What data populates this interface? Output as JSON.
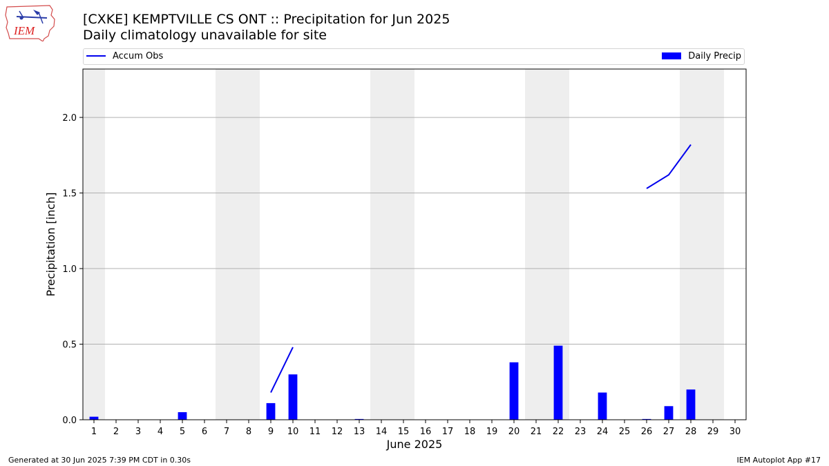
{
  "logo": {
    "text": "IEM",
    "icon": "iem-iowa-logo-icon"
  },
  "header": {
    "title": "[CXKE] KEMPTVILLE CS  ONT :: Precipitation for Jun 2025",
    "subtitle": "Daily climatology unavailable for site"
  },
  "legend": {
    "accum_label": "Accum Obs",
    "daily_label": "Daily Precip",
    "placement": "top"
  },
  "footer": {
    "generated": "Generated at 30 Jun 2025 7:39 PM CDT in 0.30s",
    "app": "IEM Autoplot App #17"
  },
  "colors": {
    "bar": "#0000ff",
    "accum_line": "#0000ee",
    "weekend_shade": "#eeeeee",
    "grid": "#b0b0b0"
  },
  "chart_data": {
    "type": "bar",
    "title": "[CXKE] KEMPTVILLE CS  ONT :: Precipitation for Jun 2025",
    "subtitle": "Daily climatology unavailable for site",
    "xlabel": "June 2025",
    "ylabel": "Precipitation [inch]",
    "ylim": [
      0,
      2.32
    ],
    "xlim": [
      0.5,
      30.5
    ],
    "yticks": [
      "0.0",
      "0.5",
      "1.0",
      "1.5",
      "2.0"
    ],
    "ytick_values": [
      0,
      0.5,
      1.0,
      1.5,
      2.0
    ],
    "xticks": [
      "1",
      "2",
      "3",
      "4",
      "5",
      "6",
      "7",
      "8",
      "9",
      "10",
      "11",
      "12",
      "13",
      "14",
      "15",
      "16",
      "17",
      "18",
      "19",
      "20",
      "21",
      "22",
      "23",
      "24",
      "25",
      "26",
      "27",
      "28",
      "29",
      "30"
    ],
    "grid": "y",
    "weekend_shading": [
      [
        1,
        1
      ],
      [
        7,
        8
      ],
      [
        14,
        15
      ],
      [
        21,
        22
      ],
      [
        28,
        29
      ]
    ],
    "series": [
      {
        "name": "Daily Precip",
        "type": "bar",
        "points": [
          {
            "day": 1,
            "value": 0.02
          },
          {
            "day": 5,
            "value": 0.05
          },
          {
            "day": 9,
            "value": 0.11
          },
          {
            "day": 10,
            "value": 0.3
          },
          {
            "day": 13,
            "value": 0.005
          },
          {
            "day": 20,
            "value": 0.38
          },
          {
            "day": 22,
            "value": 0.49
          },
          {
            "day": 24,
            "value": 0.18
          },
          {
            "day": 26,
            "value": 0.005
          },
          {
            "day": 27,
            "value": 0.09
          },
          {
            "day": 28,
            "value": 0.2
          }
        ]
      },
      {
        "name": "Accum Obs",
        "type": "line",
        "segments": [
          [
            {
              "day": 9,
              "value": 0.18
            },
            {
              "day": 10,
              "value": 0.48
            }
          ],
          [
            {
              "day": 26,
              "value": 1.53
            },
            {
              "day": 27,
              "value": 1.62
            },
            {
              "day": 28,
              "value": 1.82
            }
          ]
        ]
      }
    ]
  }
}
